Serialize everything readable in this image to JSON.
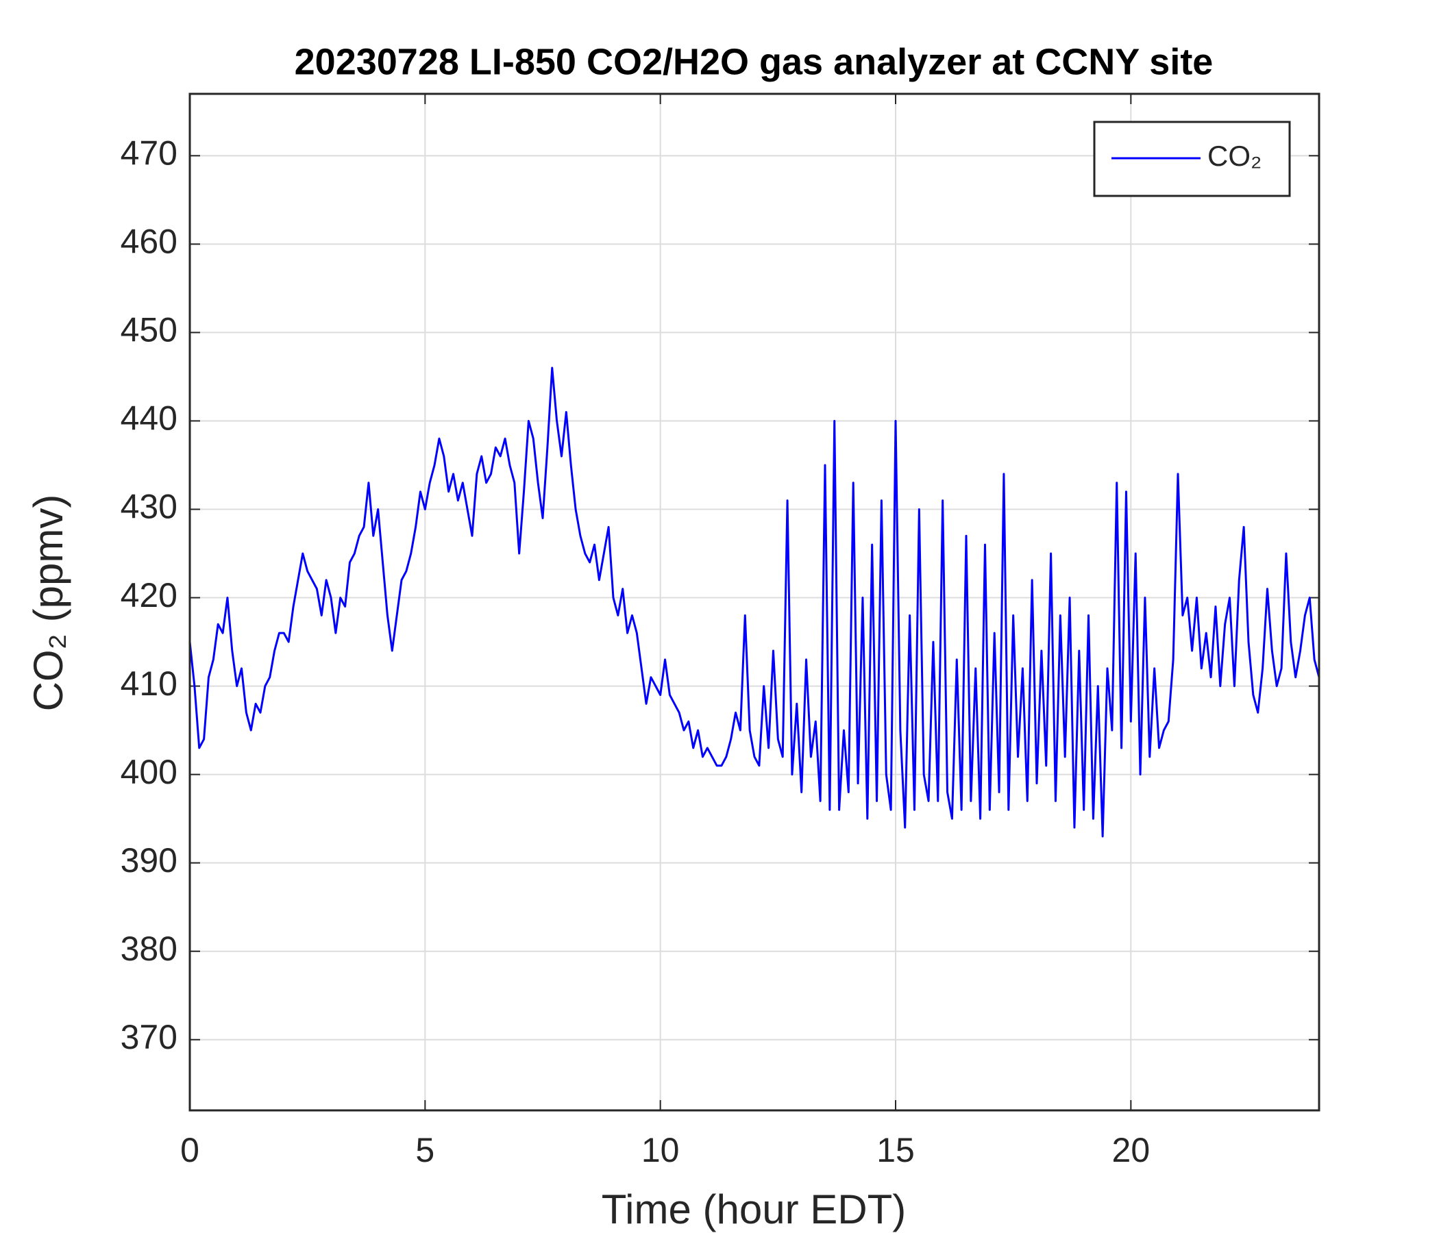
{
  "chart_data": {
    "type": "line",
    "title": "20230728 LI-850 CO2/H2O gas analyzer at CCNY site",
    "xlabel": "Time (hour EDT)",
    "ylabel": "CO₂ (ppmv)",
    "xlim": [
      0,
      24
    ],
    "ylim": [
      362,
      477
    ],
    "xticks": [
      0,
      5,
      10,
      15,
      20
    ],
    "yticks": [
      370,
      380,
      390,
      400,
      410,
      420,
      430,
      440,
      450,
      460,
      470
    ],
    "grid": true,
    "legend": "northeast",
    "x": [
      0,
      0.1,
      0.2,
      0.3,
      0.4,
      0.5,
      0.6,
      0.7,
      0.8,
      0.9,
      1,
      1.1,
      1.2,
      1.3,
      1.4,
      1.5,
      1.6,
      1.7,
      1.8,
      1.9,
      2,
      2.1,
      2.2,
      2.3,
      2.4,
      2.5,
      2.6,
      2.7,
      2.8,
      2.9,
      3,
      3.1,
      3.2,
      3.3,
      3.4,
      3.5,
      3.6,
      3.7,
      3.8,
      3.9,
      4,
      4.1,
      4.2,
      4.3,
      4.4,
      4.5,
      4.6,
      4.7,
      4.8,
      4.9,
      5,
      5.1,
      5.2,
      5.3,
      5.4,
      5.5,
      5.6,
      5.7,
      5.8,
      5.9,
      6,
      6.1,
      6.2,
      6.3,
      6.4,
      6.5,
      6.6,
      6.7,
      6.8,
      6.9,
      7,
      7.1,
      7.2,
      7.3,
      7.4,
      7.5,
      7.6,
      7.7,
      7.8,
      7.9,
      8,
      8.1,
      8.2,
      8.3,
      8.4,
      8.5,
      8.6,
      8.7,
      8.8,
      8.9,
      9,
      9.1,
      9.2,
      9.3,
      9.4,
      9.5,
      9.6,
      9.7,
      9.8,
      9.9,
      10,
      10.1,
      10.2,
      10.3,
      10.4,
      10.5,
      10.6,
      10.7,
      10.8,
      10.9,
      11,
      11.1,
      11.2,
      11.3,
      11.4,
      11.5,
      11.6,
      11.7,
      11.8,
      11.9,
      12,
      12.1,
      12.2,
      12.3,
      12.4,
      12.5,
      12.6,
      12.7,
      12.8,
      12.9,
      13,
      13.1,
      13.2,
      13.3,
      13.4,
      13.5,
      13.6,
      13.7,
      13.8,
      13.9,
      14,
      14.1,
      14.2,
      14.3,
      14.4,
      14.5,
      14.6,
      14.7,
      14.8,
      14.9,
      15,
      15.1,
      15.2,
      15.3,
      15.4,
      15.5,
      15.6,
      15.7,
      15.8,
      15.9,
      16,
      16.1,
      16.2,
      16.3,
      16.4,
      16.5,
      16.6,
      16.7,
      16.8,
      16.9,
      17,
      17.1,
      17.2,
      17.3,
      17.4,
      17.5,
      17.6,
      17.7,
      17.8,
      17.9,
      18,
      18.1,
      18.2,
      18.3,
      18.4,
      18.5,
      18.6,
      18.7,
      18.8,
      18.9,
      19,
      19.1,
      19.2,
      19.3,
      19.4,
      19.5,
      19.6,
      19.7,
      19.8,
      19.9,
      20,
      20.1,
      20.2,
      20.3,
      20.4,
      20.5,
      20.6,
      20.7,
      20.8,
      20.9,
      21,
      21.1,
      21.2,
      21.3,
      21.4,
      21.5,
      21.6,
      21.7,
      21.8,
      21.9,
      22,
      22.1,
      22.2,
      22.3,
      22.4,
      22.5,
      22.6,
      22.7,
      22.8,
      22.9,
      23,
      23.1,
      23.2,
      23.3,
      23.4,
      23.5,
      23.6,
      23.7,
      23.8,
      23.9,
      24
    ],
    "series": [
      {
        "name": "CO₂",
        "color": "#0000ff",
        "values": [
          415,
          410,
          403,
          404,
          411,
          413,
          417,
          416,
          420,
          414,
          410,
          412,
          407,
          405,
          408,
          407,
          410,
          411,
          414,
          416,
          416,
          415,
          419,
          422,
          425,
          423,
          422,
          421,
          418,
          422,
          420,
          416,
          420,
          419,
          424,
          425,
          427,
          428,
          433,
          427,
          430,
          424,
          418,
          414,
          418,
          422,
          423,
          425,
          428,
          432,
          430,
          433,
          435,
          438,
          436,
          432,
          434,
          431,
          433,
          430,
          427,
          434,
          436,
          433,
          434,
          437,
          436,
          438,
          435,
          433,
          425,
          432,
          440,
          438,
          433,
          429,
          437,
          446,
          440,
          436,
          441,
          435,
          430,
          427,
          425,
          424,
          426,
          422,
          425,
          428,
          420,
          418,
          421,
          416,
          418,
          416,
          412,
          408,
          411,
          410,
          409,
          413,
          409,
          408,
          407,
          405,
          406,
          403,
          405,
          402,
          403,
          402,
          401,
          401,
          402,
          404,
          407,
          405,
          418,
          405,
          402,
          401,
          410,
          403,
          414,
          404,
          402,
          431,
          400,
          408,
          398,
          413,
          402,
          406,
          397,
          435,
          396,
          440,
          396,
          405,
          398,
          433,
          399,
          420,
          395,
          426,
          397,
          431,
          400,
          396,
          440,
          405,
          394,
          418,
          396,
          430,
          400,
          397,
          415,
          397,
          431,
          398,
          395,
          413,
          396,
          427,
          397,
          412,
          395,
          426,
          396,
          416,
          398,
          434,
          396,
          418,
          402,
          412,
          397,
          422,
          399,
          414,
          401,
          425,
          397,
          418,
          402,
          420,
          394,
          414,
          396,
          418,
          395,
          410,
          393,
          412,
          405,
          433,
          403,
          432,
          406,
          425,
          400,
          420,
          402,
          412,
          403,
          405,
          406,
          413,
          434,
          418,
          420,
          414,
          420,
          412,
          416,
          411,
          419,
          410,
          417,
          420,
          410,
          422,
          428,
          415,
          409,
          407,
          412,
          421,
          414,
          410,
          412,
          425,
          415,
          411,
          414,
          418,
          420,
          413,
          411
        ]
      }
    ]
  }
}
